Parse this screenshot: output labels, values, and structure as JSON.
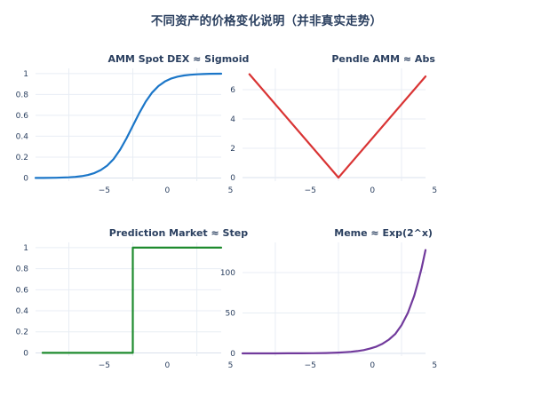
{
  "figure": {
    "title": "不同资产的价格变化说明（并非真实走势）"
  },
  "style": {
    "background": "#ffffff",
    "text_color": "#2a3f5f",
    "grid_color": "#e8edf4",
    "zero_line_color": "#d9e0ec"
  },
  "chart_data": [
    {
      "type": "line",
      "title": "AMM Spot DEX ≈ Sigmoid",
      "series": [
        {
          "name": "sigmoid",
          "color": "#1b76c8",
          "x": [
            -7.6,
            -7,
            -6,
            -5,
            -4.5,
            -4,
            -3.5,
            -3,
            -2.5,
            -2,
            -1.5,
            -1,
            -0.5,
            0,
            0.5,
            1,
            1.5,
            2,
            2.5,
            3,
            3.5,
            4,
            4.5,
            5,
            5.5,
            6,
            6.9
          ],
          "y": [
            0.0005,
            0.0009,
            0.0025,
            0.0067,
            0.011,
            0.018,
            0.029,
            0.047,
            0.076,
            0.119,
            0.182,
            0.269,
            0.378,
            0.5,
            0.622,
            0.731,
            0.818,
            0.881,
            0.924,
            0.953,
            0.971,
            0.982,
            0.989,
            0.993,
            0.996,
            0.998,
            0.999
          ]
        }
      ],
      "xlim": [
        -7.6,
        6.9
      ],
      "ylim": [
        -0.03,
        1.05
      ],
      "grid": true,
      "x_gridlines": [
        -5,
        0,
        5
      ],
      "x_tick_labels": [
        "−5",
        "0",
        "5"
      ],
      "x_tick_fractions": [
        0.37,
        0.71,
        1.05
      ],
      "y_ticks": [
        0,
        0.2,
        0.4,
        0.6,
        0.8,
        1
      ],
      "y_tick_labels": [
        "0",
        "0.2",
        "0.4",
        "0.6",
        "0.8",
        "1"
      ]
    },
    {
      "type": "line",
      "title": "Pendle AMM ≈ Abs",
      "series": [
        {
          "name": "abs",
          "color": "#d93434",
          "x": [
            -7.05,
            0,
            6.9
          ],
          "y": [
            7.05,
            0,
            6.9
          ]
        }
      ],
      "xlim": [
        -7.6,
        6.9
      ],
      "ylim": [
        -0.24,
        7.45
      ],
      "grid": true,
      "x_gridlines": [
        -5,
        0,
        5
      ],
      "x_tick_labels": [
        "−5",
        "0",
        "5"
      ],
      "x_tick_fractions": [
        0.37,
        0.71,
        1.05
      ],
      "y_ticks": [
        0,
        2,
        4,
        6
      ],
      "y_tick_labels": [
        "0",
        "2",
        "4",
        "6"
      ]
    },
    {
      "type": "line",
      "title": "Prediction Market ≈ Step",
      "series": [
        {
          "name": "step",
          "color": "#1f8b2e",
          "x": [
            -7.05,
            0,
            0,
            6.9
          ],
          "y": [
            0,
            0,
            1,
            1
          ]
        }
      ],
      "xlim": [
        -7.6,
        6.9
      ],
      "ylim": [
        -0.03,
        1.05
      ],
      "grid": true,
      "x_gridlines": [
        -5,
        0,
        5
      ],
      "x_tick_labels": [
        "−5",
        "0",
        "5"
      ],
      "x_tick_fractions": [
        0.37,
        0.71,
        1.05
      ],
      "y_ticks": [
        0,
        0.2,
        0.4,
        0.6,
        0.8,
        1
      ],
      "y_tick_labels": [
        "0",
        "0.2",
        "0.4",
        "0.6",
        "0.8",
        "1"
      ]
    },
    {
      "type": "line",
      "title": "Meme ≈ Exp(2^x)",
      "series": [
        {
          "name": "exp",
          "color": "#713a9c",
          "x": [
            -7.6,
            -6,
            -5,
            -4,
            -3,
            -2,
            -1,
            0,
            0.5,
            1,
            1.5,
            2,
            2.5,
            3,
            3.5,
            4,
            4.5,
            5,
            5.5,
            6,
            6.3,
            6.6,
            6.9
          ],
          "y": [
            0.005,
            0.014,
            0.029,
            0.058,
            0.12,
            0.24,
            0.49,
            1,
            1.4,
            2,
            2.9,
            4.1,
            5.9,
            8.4,
            12,
            17,
            24,
            35,
            50,
            71,
            88,
            106,
            128
          ]
        }
      ],
      "xlim": [
        -7.6,
        6.9
      ],
      "ylim": [
        -3.3,
        137.4
      ],
      "grid": true,
      "x_gridlines": [
        -5,
        0,
        5
      ],
      "x_tick_labels": [
        "−5",
        "0",
        "5"
      ],
      "x_tick_fractions": [
        0.37,
        0.71,
        1.05
      ],
      "y_ticks": [
        0,
        50,
        100
      ],
      "y_tick_labels": [
        "0",
        "50",
        "100"
      ]
    }
  ]
}
